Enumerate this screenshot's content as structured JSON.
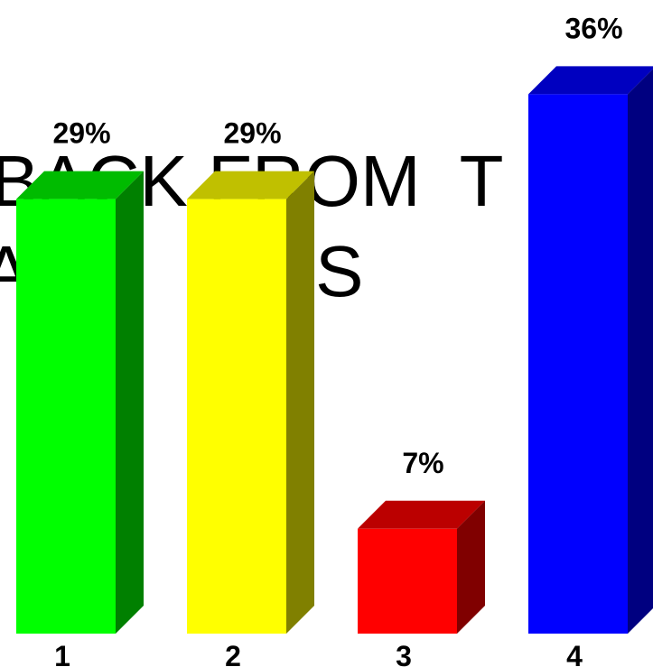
{
  "background_text": [
    "BACK FROM",
    "BACK FROM  T",
    "A   A    ONS"
  ],
  "chart_data": {
    "type": "bar3d",
    "categories": [
      "1",
      "2",
      "3",
      "4"
    ],
    "values": [
      29,
      29,
      7,
      36
    ],
    "value_labels": [
      "29%",
      "29%",
      "7%",
      "36%"
    ],
    "colors": [
      [
        "#00ff00",
        "#00bb00",
        "#008000"
      ],
      [
        "#ffff00",
        "#c0c000",
        "#808000"
      ],
      [
        "#ff0000",
        "#bb0000",
        "#800000"
      ],
      [
        "#0000ff",
        "#0000c0",
        "#000080"
      ]
    ]
  }
}
